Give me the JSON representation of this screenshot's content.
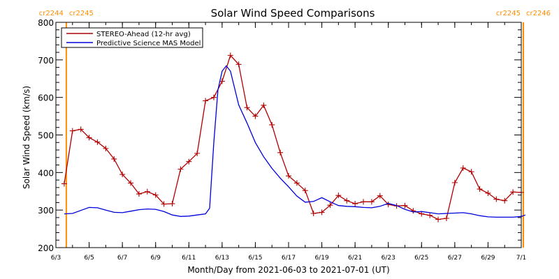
{
  "chart_data": {
    "type": "line",
    "title": "Solar Wind Speed Comparisons",
    "xlabel": "Month/Day from 2021-06-03 to 2021-07-01 (UT)",
    "ylabel": "Solar Wind Speed (km/s)",
    "xlim": [
      "2021-06-03",
      "2021-07-01"
    ],
    "ylim": [
      200,
      800
    ],
    "x_ticks": [
      "6/3",
      "6/5",
      "6/7",
      "6/9",
      "6/11",
      "6/13",
      "6/15",
      "6/17",
      "6/19",
      "6/21",
      "6/23",
      "6/25",
      "6/27",
      "6/29",
      "7/1"
    ],
    "y_ticks": [
      200,
      300,
      400,
      500,
      600,
      700,
      800
    ],
    "legend_position": "top-left",
    "carrington_markers": [
      {
        "date": "2021-06-03T15:00",
        "left_label": "cr2244",
        "right_label": "cr2245",
        "color": "#ff8c00"
      },
      {
        "date": "2021-07-01T03:00",
        "left_label": "cr2245",
        "right_label": "cr2246",
        "color": "#ff8c00"
      }
    ],
    "series": [
      {
        "name": "STEREO-Ahead (12-hr avg)",
        "color": "#b00000",
        "marker": "plus",
        "x": [
          "2021-06-03T12:00",
          "2021-06-04T00:00",
          "2021-06-04T12:00",
          "2021-06-05T00:00",
          "2021-06-05T12:00",
          "2021-06-06T00:00",
          "2021-06-06T12:00",
          "2021-06-07T00:00",
          "2021-06-07T12:00",
          "2021-06-08T00:00",
          "2021-06-08T12:00",
          "2021-06-09T00:00",
          "2021-06-09T12:00",
          "2021-06-10T00:00",
          "2021-06-10T12:00",
          "2021-06-11T00:00",
          "2021-06-11T12:00",
          "2021-06-12T00:00",
          "2021-06-12T12:00",
          "2021-06-13T00:00",
          "2021-06-13T12:00",
          "2021-06-14T00:00",
          "2021-06-14T12:00",
          "2021-06-15T00:00",
          "2021-06-15T12:00",
          "2021-06-16T00:00",
          "2021-06-16T12:00",
          "2021-06-17T00:00",
          "2021-06-17T12:00",
          "2021-06-18T00:00",
          "2021-06-18T12:00",
          "2021-06-19T00:00",
          "2021-06-19T12:00",
          "2021-06-20T00:00",
          "2021-06-20T12:00",
          "2021-06-21T00:00",
          "2021-06-21T12:00",
          "2021-06-22T00:00",
          "2021-06-22T12:00",
          "2021-06-23T00:00",
          "2021-06-23T12:00",
          "2021-06-24T00:00",
          "2021-06-24T12:00",
          "2021-06-25T00:00",
          "2021-06-25T12:00",
          "2021-06-26T00:00",
          "2021-06-26T12:00",
          "2021-06-27T00:00",
          "2021-06-27T12:00",
          "2021-06-28T00:00",
          "2021-06-28T12:00",
          "2021-06-29T00:00",
          "2021-06-29T12:00",
          "2021-06-30T00:00",
          "2021-06-30T12:00",
          "2021-07-01T00:00"
        ],
        "y": [
          370,
          511,
          515,
          493,
          481,
          464,
          436,
          395,
          372,
          343,
          349,
          340,
          316,
          317,
          409,
          429,
          451,
          591,
          600,
          643,
          712,
          688,
          573,
          550,
          579,
          527,
          453,
          391,
          372,
          352,
          291,
          294,
          313,
          339,
          325,
          317,
          322,
          322,
          338,
          315,
          311,
          312,
          298,
          290,
          286,
          275,
          278,
          373,
          412,
          402,
          356,
          345,
          329,
          325,
          348,
          347
        ]
      },
      {
        "name": "Predictive Science MAS Model",
        "color": "#0000dd",
        "marker": "none",
        "x": [
          "2021-06-03T12:00",
          "2021-06-04T00:00",
          "2021-06-04T12:00",
          "2021-06-05T00:00",
          "2021-06-05T12:00",
          "2021-06-06T00:00",
          "2021-06-06T12:00",
          "2021-06-07T00:00",
          "2021-06-07T12:00",
          "2021-06-08T00:00",
          "2021-06-08T12:00",
          "2021-06-09T00:00",
          "2021-06-09T12:00",
          "2021-06-10T00:00",
          "2021-06-10T12:00",
          "2021-06-11T00:00",
          "2021-06-11T12:00",
          "2021-06-12T00:00",
          "2021-06-12T06:00",
          "2021-06-12T12:00",
          "2021-06-12T18:00",
          "2021-06-13T00:00",
          "2021-06-13T06:00",
          "2021-06-13T12:00",
          "2021-06-14T00:00",
          "2021-06-14T12:00",
          "2021-06-15T00:00",
          "2021-06-15T12:00",
          "2021-06-16T00:00",
          "2021-06-16T12:00",
          "2021-06-17T00:00",
          "2021-06-17T12:00",
          "2021-06-18T00:00",
          "2021-06-18T12:00",
          "2021-06-19T00:00",
          "2021-06-19T12:00",
          "2021-06-20T00:00",
          "2021-06-20T12:00",
          "2021-06-21T00:00",
          "2021-06-21T12:00",
          "2021-06-22T00:00",
          "2021-06-22T12:00",
          "2021-06-23T00:00",
          "2021-06-23T12:00",
          "2021-06-24T00:00",
          "2021-06-24T12:00",
          "2021-06-25T00:00",
          "2021-06-25T12:00",
          "2021-06-26T00:00",
          "2021-06-26T12:00",
          "2021-06-27T00:00",
          "2021-06-27T12:00",
          "2021-06-28T00:00",
          "2021-06-28T12:00",
          "2021-06-29T00:00",
          "2021-06-29T12:00",
          "2021-06-30T00:00",
          "2021-06-30T12:00",
          "2021-07-01T00:00",
          "2021-07-01T06:00"
        ],
        "y": [
          290,
          291,
          299,
          307,
          306,
          300,
          294,
          293,
          297,
          301,
          303,
          302,
          296,
          287,
          283,
          284,
          287,
          290,
          305,
          480,
          620,
          670,
          684,
          670,
          580,
          532,
          480,
          442,
          411,
          385,
          362,
          337,
          321,
          323,
          333,
          322,
          312,
          310,
          309,
          307,
          306,
          310,
          318,
          312,
          302,
          295,
          296,
          293,
          290,
          291,
          292,
          293,
          290,
          285,
          282,
          281,
          281,
          281,
          283,
          287
        ]
      }
    ]
  }
}
